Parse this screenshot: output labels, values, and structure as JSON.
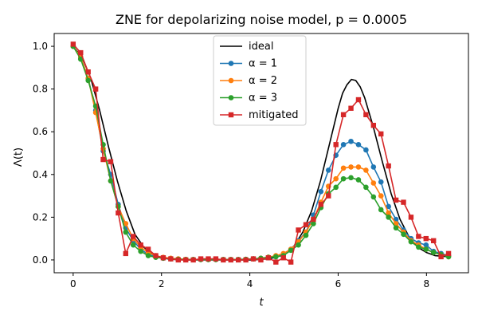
{
  "chart_data": {
    "type": "line",
    "title": "ZNE for depolarizing noise model, p = 0.0005",
    "xlabel": "t",
    "ylabel": "Λ(t)",
    "xlim": [
      -0.43,
      8.95
    ],
    "ylim": [
      -0.06,
      1.06
    ],
    "xticks": [
      0,
      2,
      4,
      6,
      8
    ],
    "yticks": [
      0.0,
      0.2,
      0.4,
      0.6,
      0.8,
      1.0
    ],
    "xtick_labels": [
      "0",
      "2",
      "4",
      "6",
      "8"
    ],
    "ytick_labels": [
      "0.0",
      "0.2",
      "0.4",
      "0.6",
      "0.8",
      "1.0"
    ],
    "grid": false,
    "legend_position": "upper-center",
    "x": [
      0.0,
      0.17,
      0.34,
      0.51,
      0.68,
      0.85,
      1.02,
      1.19,
      1.36,
      1.53,
      1.7,
      1.87,
      2.04,
      2.21,
      2.38,
      2.55,
      2.72,
      2.89,
      3.06,
      3.23,
      3.4,
      3.57,
      3.74,
      3.91,
      4.08,
      4.25,
      4.42,
      4.59,
      4.76,
      4.93,
      5.1,
      5.27,
      5.44,
      5.61,
      5.78,
      5.95,
      6.12,
      6.29,
      6.46,
      6.63,
      6.8,
      6.97,
      7.14,
      7.31,
      7.48,
      7.65,
      7.82,
      7.99,
      8.16,
      8.33,
      8.5
    ],
    "series": [
      {
        "name": "ideal",
        "color": "#000000",
        "marker": "none",
        "x": [
          0.0,
          0.2,
          0.4,
          0.6,
          0.8,
          1.0,
          1.2,
          1.4,
          1.6,
          1.8,
          2.0,
          2.2,
          2.4,
          2.6,
          2.8,
          3.0,
          3.2,
          3.4,
          3.6,
          3.8,
          4.0,
          4.2,
          4.4,
          4.6,
          4.8,
          5.0,
          5.2,
          5.4,
          5.6,
          5.8,
          6.0,
          6.1,
          6.2,
          6.3,
          6.4,
          6.5,
          6.6,
          6.8,
          7.0,
          7.2,
          7.4,
          7.6,
          7.8,
          8.0,
          8.2,
          8.5
        ],
        "values": [
          1.0,
          0.95,
          0.85,
          0.7,
          0.53,
          0.37,
          0.23,
          0.12,
          0.06,
          0.025,
          0.01,
          0.003,
          0.001,
          0.0,
          0.0,
          0.0,
          0.0,
          0.0,
          0.0,
          0.0,
          0.0,
          0.002,
          0.005,
          0.012,
          0.03,
          0.065,
          0.13,
          0.23,
          0.37,
          0.54,
          0.71,
          0.78,
          0.82,
          0.845,
          0.84,
          0.81,
          0.76,
          0.62,
          0.46,
          0.31,
          0.19,
          0.11,
          0.06,
          0.035,
          0.02,
          0.015
        ]
      },
      {
        "name": "α = 1",
        "color": "#1f77b4",
        "marker": "circle",
        "values": [
          1.0,
          0.95,
          0.85,
          0.7,
          0.51,
          0.4,
          0.26,
          0.15,
          0.09,
          0.05,
          0.025,
          0.015,
          0.008,
          0.005,
          0.003,
          0.002,
          0.002,
          0.002,
          0.002,
          0.002,
          0.002,
          0.002,
          0.002,
          0.003,
          0.005,
          0.007,
          0.01,
          0.015,
          0.025,
          0.05,
          0.09,
          0.13,
          0.21,
          0.32,
          0.42,
          0.49,
          0.54,
          0.555,
          0.54,
          0.515,
          0.435,
          0.365,
          0.25,
          0.19,
          0.14,
          0.1,
          0.08,
          0.07,
          0.04,
          0.03,
          0.02
        ]
      },
      {
        "name": "α = 2",
        "color": "#ff7f0e",
        "marker": "circle",
        "values": [
          1.0,
          0.95,
          0.85,
          0.69,
          0.52,
          0.37,
          0.25,
          0.17,
          0.1,
          0.06,
          0.035,
          0.02,
          0.012,
          0.008,
          0.005,
          0.003,
          0.002,
          0.002,
          0.002,
          0.002,
          0.002,
          0.002,
          0.002,
          0.003,
          0.005,
          0.008,
          0.013,
          0.02,
          0.03,
          0.05,
          0.085,
          0.13,
          0.19,
          0.27,
          0.345,
          0.38,
          0.43,
          0.435,
          0.435,
          0.42,
          0.36,
          0.3,
          0.22,
          0.17,
          0.13,
          0.09,
          0.07,
          0.05,
          0.035,
          0.025,
          0.015
        ]
      },
      {
        "name": "α = 3",
        "color": "#2ca02c",
        "marker": "circle",
        "values": [
          1.0,
          0.94,
          0.84,
          0.72,
          0.54,
          0.37,
          0.25,
          0.13,
          0.07,
          0.04,
          0.02,
          0.012,
          0.008,
          0.005,
          0.003,
          0.002,
          0.002,
          0.002,
          0.002,
          0.002,
          0.002,
          0.002,
          0.002,
          0.003,
          0.005,
          0.008,
          0.012,
          0.015,
          0.02,
          0.045,
          0.07,
          0.115,
          0.17,
          0.245,
          0.31,
          0.34,
          0.38,
          0.385,
          0.375,
          0.34,
          0.295,
          0.235,
          0.2,
          0.15,
          0.12,
          0.085,
          0.06,
          0.05,
          0.035,
          0.025,
          0.015
        ]
      },
      {
        "name": "mitigated",
        "color": "#d62728",
        "marker": "square",
        "values": [
          1.01,
          0.97,
          0.88,
          0.8,
          0.47,
          0.46,
          0.22,
          0.03,
          0.11,
          0.07,
          0.05,
          0.02,
          0.01,
          0.005,
          0.0,
          0.0,
          0.0,
          0.005,
          0.005,
          0.005,
          0.0,
          0.0,
          0.0,
          0.0,
          0.005,
          0.0,
          0.01,
          -0.01,
          0.01,
          -0.01,
          0.14,
          0.165,
          0.19,
          0.26,
          0.3,
          0.54,
          0.68,
          0.71,
          0.75,
          0.68,
          0.63,
          0.59,
          0.44,
          0.28,
          0.27,
          0.2,
          0.11,
          0.1,
          0.09,
          0.015,
          0.03
        ]
      }
    ]
  }
}
